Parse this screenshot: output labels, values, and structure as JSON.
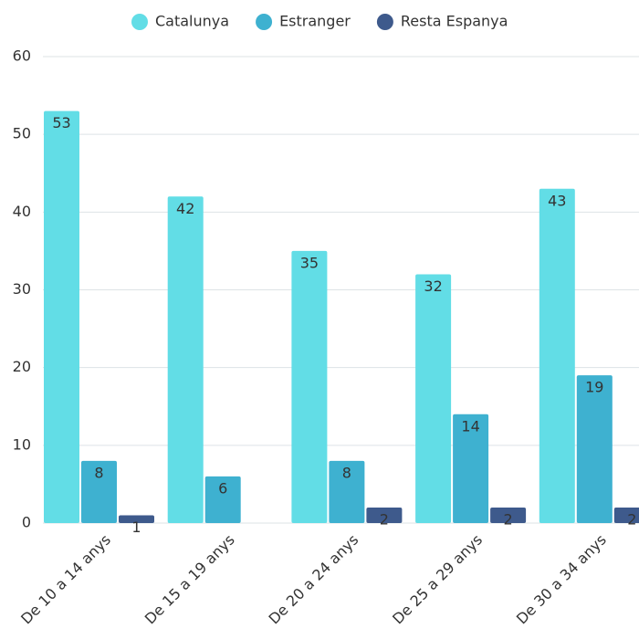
{
  "chart_data": {
    "type": "bar",
    "categories": [
      "De 10 a 14 anys",
      "De 15 a 19 anys",
      "De 20 a 24 anys",
      "De 25 a 29 anys",
      "De 30 a 34 anys"
    ],
    "series": [
      {
        "name": "Catalunya",
        "color": "#62dde6",
        "values": [
          53,
          42,
          35,
          32,
          43
        ]
      },
      {
        "name": "Estranger",
        "color": "#3eb1d0",
        "values": [
          8,
          6,
          8,
          14,
          19
        ]
      },
      {
        "name": "Resta Espanya",
        "color": "#3e5a8c",
        "values": [
          1,
          null,
          2,
          2,
          2
        ]
      }
    ],
    "ylim": [
      0,
      60
    ],
    "yticks": [
      0,
      10,
      20,
      30,
      40,
      50,
      60
    ],
    "grid": true,
    "legend": "top"
  }
}
